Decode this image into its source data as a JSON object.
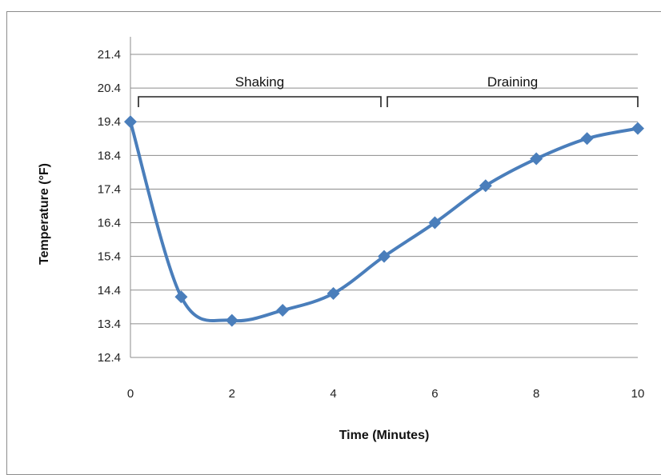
{
  "chart_data": {
    "type": "line",
    "xlabel": "Time (Minutes)",
    "ylabel": "Temperature (°F)",
    "xlim": [
      0,
      10
    ],
    "ylim": [
      12.4,
      21.4
    ],
    "x_ticks": [
      "0",
      "2",
      "4",
      "6",
      "8",
      "10"
    ],
    "y_ticks": [
      "12.4",
      "13.4",
      "14.4",
      "15.4",
      "16.4",
      "17.4",
      "18.4",
      "19.4",
      "20.4",
      "21.4"
    ],
    "grid": "horizontal",
    "series": [
      {
        "color": "#4a7ebb",
        "marker": "diamond",
        "smooth": true,
        "x": [
          0,
          1,
          2,
          3,
          4,
          5,
          6,
          7,
          8,
          9,
          10
        ],
        "y": [
          19.4,
          14.2,
          13.5,
          13.8,
          14.3,
          15.4,
          16.4,
          17.5,
          18.3,
          18.9,
          19.2
        ]
      }
    ],
    "annotations": [
      {
        "label": "Shaking",
        "x_start": 0,
        "x_end": 5
      },
      {
        "label": "Draining",
        "x_start": 5,
        "x_end": 10
      }
    ]
  }
}
